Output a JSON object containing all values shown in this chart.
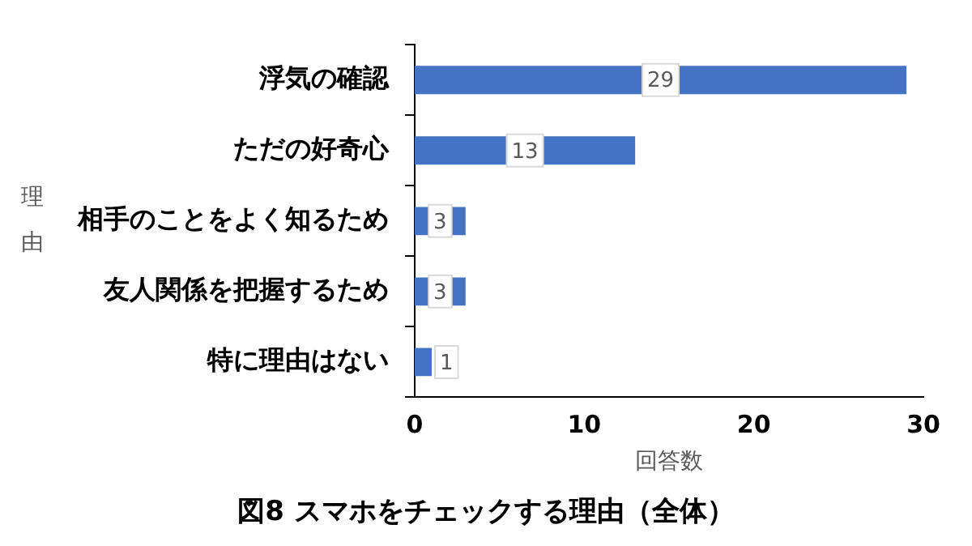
{
  "chart_data": {
    "type": "bar",
    "orientation": "horizontal",
    "title": "図8 スマホをチェックする理由（全体）",
    "xlabel": "回答数",
    "ylabel": "理由",
    "categories": [
      "浮気の確認",
      "ただの好奇心",
      "相手のことをよく知るため",
      "友人関係を把握するため",
      "特に理由はない"
    ],
    "values": [
      29,
      13,
      3,
      3,
      1
    ],
    "color": "#4472c4",
    "xlim": [
      0,
      30
    ],
    "xticks": [
      0,
      10,
      20,
      30
    ],
    "grid": false,
    "legend": false,
    "data_labels": true
  }
}
